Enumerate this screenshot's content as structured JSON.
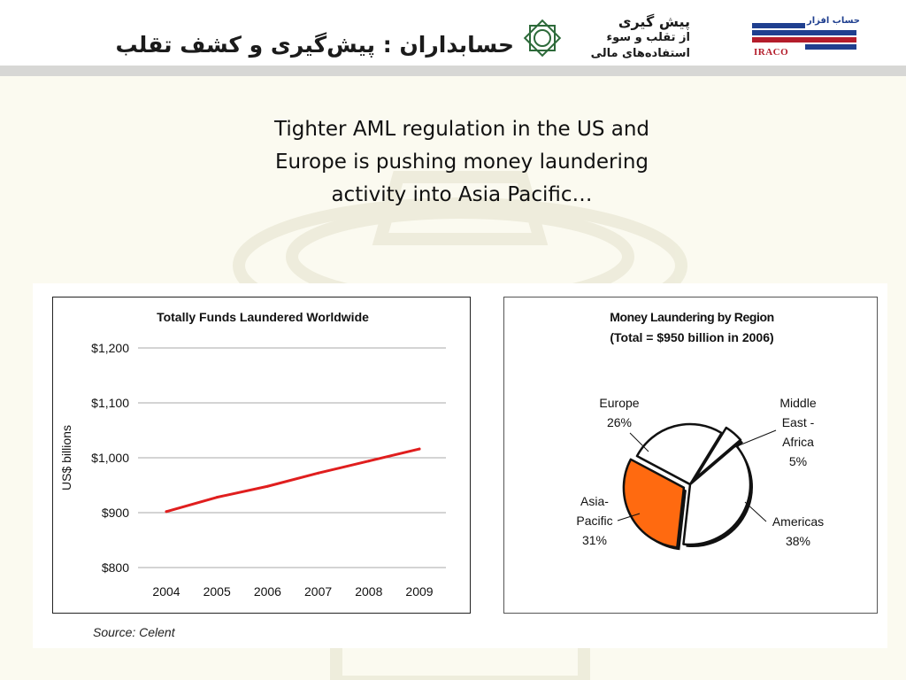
{
  "header": {
    "title": "حسابداران : پیش‌گیری و کشف تقلب",
    "brand_lines": [
      "پیش گیری",
      "از تقلب و سوء",
      "استفاده‌های مالی"
    ],
    "brand_top": "حساب افزار",
    "brand_logo": "IRACO"
  },
  "slide": {
    "title_lines": [
      "Tighter AML  regulation in the US and",
      "Europe is pushing money laundering",
      "activity into Asia Pacific…"
    ]
  },
  "colors": {
    "line": "#e01e1e",
    "asia_pacific": "#ff6a10",
    "slice_default": "#ffffff",
    "gridline": "#a9a9a9"
  },
  "chart_data": [
    {
      "type": "line",
      "title": "Totally Funds Laundered Worldwide",
      "xlabel": "",
      "ylabel": "US$ billions",
      "x": [
        "2004",
        "2005",
        "2006",
        "2007",
        "2008",
        "2009"
      ],
      "series": [
        {
          "values": [
            902,
            928,
            948,
            972,
            994,
            1016
          ]
        }
      ],
      "ylim": [
        800,
        1200
      ],
      "yticks": [
        800,
        900,
        1000,
        1100,
        1200
      ],
      "ytick_labels": [
        "$800",
        "$900",
        "$1,000",
        "$1,100",
        "$1,200"
      ],
      "grid": true
    },
    {
      "type": "pie",
      "title": "Money Laundering by Region",
      "subtitle": "(Total = $950 billion in 2006)",
      "slices": [
        {
          "label": "Europe",
          "pct_label": "26%",
          "value": 26,
          "exploded": false
        },
        {
          "label": "Middle East - Africa",
          "label_lines": [
            "Middle",
            "East -",
            "Africa"
          ],
          "pct_label": "5%",
          "value": 5,
          "exploded": true
        },
        {
          "label": "Americas",
          "pct_label": "38%",
          "value": 38,
          "exploded": false
        },
        {
          "label": "Asia-Pacific",
          "label_lines": [
            "Asia-",
            "Pacific"
          ],
          "pct_label": "31%",
          "value": 31,
          "exploded": true,
          "highlight": true
        }
      ]
    }
  ],
  "source": "Source: Celent"
}
